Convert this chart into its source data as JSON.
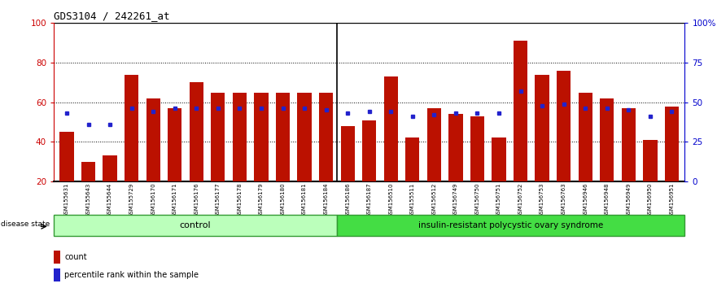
{
  "title": "GDS3104 / 242261_at",
  "samples": [
    "GSM155631",
    "GSM155643",
    "GSM155644",
    "GSM155729",
    "GSM156170",
    "GSM156171",
    "GSM156176",
    "GSM156177",
    "GSM156178",
    "GSM156179",
    "GSM156180",
    "GSM156181",
    "GSM156184",
    "GSM156186",
    "GSM156187",
    "GSM156510",
    "GSM155511",
    "GSM156512",
    "GSM156749",
    "GSM156750",
    "GSM156751",
    "GSM156752",
    "GSM156753",
    "GSM156763",
    "GSM156946",
    "GSM156948",
    "GSM156949",
    "GSM156950",
    "GSM156951"
  ],
  "bar_heights": [
    45,
    30,
    33,
    74,
    62,
    57,
    70,
    65,
    65,
    65,
    65,
    65,
    65,
    48,
    51,
    73,
    42,
    57,
    54,
    53,
    42,
    91,
    74,
    76,
    65,
    62,
    57,
    41,
    58
  ],
  "percentile_values": [
    43,
    36,
    36,
    46,
    44,
    46,
    46,
    46,
    46,
    46,
    46,
    46,
    45,
    43,
    44,
    44,
    41,
    42,
    43,
    43,
    43,
    57,
    48,
    49,
    46,
    46,
    45,
    41,
    44
  ],
  "control_count": 13,
  "disease_count": 16,
  "ymin": 20,
  "ymax": 100,
  "yticks_left": [
    20,
    40,
    60,
    80,
    100
  ],
  "ytick_labels_right": [
    "0",
    "25",
    "50",
    "75",
    "100%"
  ],
  "bar_color": "#BB1100",
  "percentile_color": "#2222CC",
  "bg_color": "#FFFFFF",
  "control_color": "#BBFFBB",
  "disease_color": "#44DD44",
  "left_tick_color": "#CC0000",
  "right_tick_color": "#0000CC",
  "control_label": "control",
  "disease_label": "insulin-resistant polycystic ovary syndrome",
  "disease_state_label": "disease state",
  "legend_count_label": "count",
  "legend_percentile_label": "percentile rank within the sample"
}
